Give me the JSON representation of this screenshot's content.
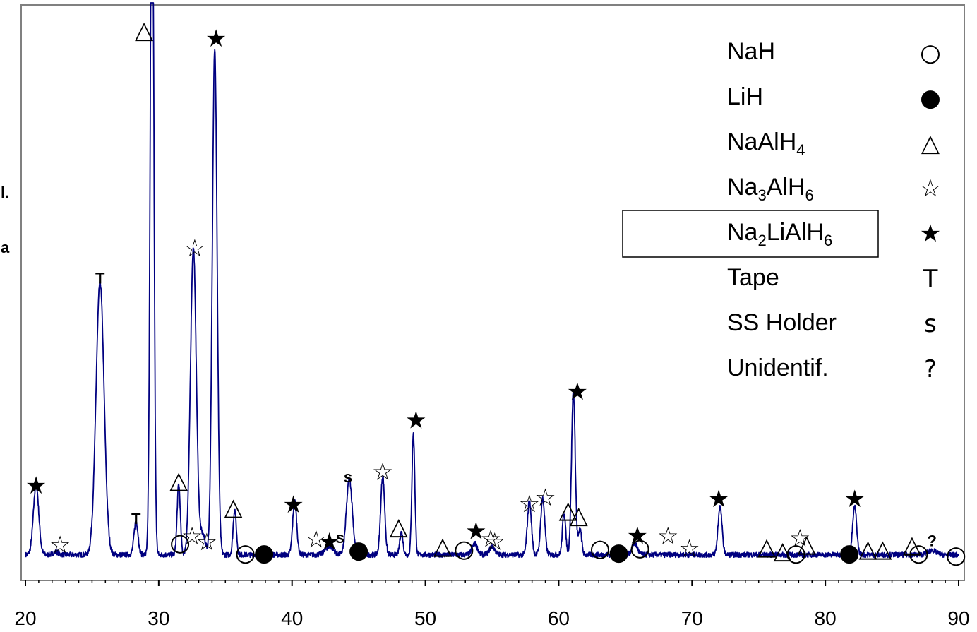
{
  "left_cut_text": [
    "l.",
    "a"
  ],
  "chart_data": {
    "type": "line",
    "title": "",
    "xlabel": "",
    "ylabel": "",
    "xlim": [
      20,
      90
    ],
    "ylim": [
      0,
      100
    ],
    "x_ticks": [
      20,
      30,
      40,
      50,
      60,
      70,
      80,
      90
    ],
    "x_tick_labels": [
      "20",
      "30",
      "40",
      "50",
      "60",
      "70",
      "80",
      "90"
    ],
    "grid": false,
    "line_color": "#000080",
    "series": [
      {
        "baseline": 2.3,
        "noise": 0.45,
        "peaks": [
          {
            "x": 20.8,
            "height": 12.5,
            "width": 0.2
          },
          {
            "x": 22.3,
            "height": 0.5,
            "width": 0.2
          },
          {
            "x": 25.6,
            "height": 48.5,
            "width": 0.3
          },
          {
            "x": 28.3,
            "height": 6.0,
            "width": 0.15
          },
          {
            "x": 29.5,
            "height": 135.0,
            "width": 0.13
          },
          {
            "x": 31.5,
            "height": 12.5,
            "width": 0.12
          },
          {
            "x": 32.6,
            "height": 54.5,
            "width": 0.22
          },
          {
            "x": 33.3,
            "height": 3.5,
            "width": 0.2
          },
          {
            "x": 34.2,
            "height": 90.0,
            "width": 0.18
          },
          {
            "x": 35.7,
            "height": 8.0,
            "width": 0.12
          },
          {
            "x": 40.2,
            "height": 9.5,
            "width": 0.15
          },
          {
            "x": 42.8,
            "height": 1.5,
            "width": 0.3
          },
          {
            "x": 44.3,
            "height": 13.5,
            "width": 0.22
          },
          {
            "x": 46.8,
            "height": 14.0,
            "width": 0.15
          },
          {
            "x": 48.2,
            "height": 4.0,
            "width": 0.12
          },
          {
            "x": 49.1,
            "height": 21.5,
            "width": 0.11
          },
          {
            "x": 53.7,
            "height": 2.0,
            "width": 0.2
          },
          {
            "x": 55.0,
            "height": 1.5,
            "width": 0.2
          },
          {
            "x": 57.8,
            "height": 9.5,
            "width": 0.15
          },
          {
            "x": 58.8,
            "height": 10.0,
            "width": 0.15
          },
          {
            "x": 60.4,
            "height": 7.5,
            "width": 0.12
          },
          {
            "x": 61.1,
            "height": 29.0,
            "width": 0.14
          },
          {
            "x": 61.6,
            "height": 4.5,
            "width": 0.12
          },
          {
            "x": 65.7,
            "height": 2.0,
            "width": 0.2
          },
          {
            "x": 72.1,
            "height": 8.5,
            "width": 0.15
          },
          {
            "x": 82.2,
            "height": 8.5,
            "width": 0.15
          },
          {
            "x": 88.0,
            "height": 0.8,
            "width": 0.3
          }
        ]
      }
    ],
    "legend": [
      {
        "label": "NaH",
        "symbol": "○"
      },
      {
        "label": "LiH",
        "symbol": "●"
      },
      {
        "label": "NaAlH",
        "sub": "4",
        "symbol": "△"
      },
      {
        "label": "Na3AlH6",
        "parts": [
          [
            "Na",
            ""
          ],
          [
            "3",
            "sub"
          ],
          [
            "AlH",
            ""
          ],
          [
            "6",
            "sub"
          ]
        ],
        "symbol": "☆"
      },
      {
        "label": "Na2LiAlH6",
        "parts": [
          [
            "Na",
            ""
          ],
          [
            "2",
            "sub"
          ],
          [
            "LiAlH",
            ""
          ],
          [
            "6",
            "sub"
          ]
        ],
        "symbol": "★",
        "boxed": true
      },
      {
        "label": "Tape",
        "symbol": "T"
      },
      {
        "label": "SS Holder",
        "symbol": "s"
      },
      {
        "label": "Unidentif.",
        "symbol": "?"
      }
    ],
    "legend_position": "top-right",
    "annotations": [
      {
        "x": 20.8,
        "y": 14.8,
        "symbol": "★"
      },
      {
        "x": 22.6,
        "y": 4.0,
        "symbol": "☆"
      },
      {
        "x": 25.6,
        "y": 51.5,
        "symbol": "T"
      },
      {
        "x": 28.3,
        "y": 8.8,
        "symbol": "T"
      },
      {
        "x": 28.9,
        "y": 95.5,
        "symbol": "△"
      },
      {
        "x": 31.5,
        "y": 15.5,
        "symbol": "△"
      },
      {
        "x": 31.6,
        "y": 4.2,
        "symbol": "○"
      },
      {
        "x": 32.5,
        "y": 5.6,
        "symbol": "☆"
      },
      {
        "x": 32.7,
        "y": 56.7,
        "symbol": "☆"
      },
      {
        "x": 33.6,
        "y": 4.5,
        "symbol": "☆"
      },
      {
        "x": 34.3,
        "y": 94.2,
        "symbol": "★"
      },
      {
        "x": 35.6,
        "y": 10.7,
        "symbol": "△"
      },
      {
        "x": 36.5,
        "y": 2.4,
        "symbol": "○"
      },
      {
        "x": 37.9,
        "y": 2.4,
        "symbol": "●"
      },
      {
        "x": 40.1,
        "y": 11.4,
        "symbol": "★"
      },
      {
        "x": 41.8,
        "y": 5.0,
        "symbol": "☆"
      },
      {
        "x": 42.8,
        "y": 4.8,
        "symbol": "★"
      },
      {
        "x": 43.6,
        "y": 5.4,
        "symbol": "s"
      },
      {
        "x": 44.2,
        "y": 16.2,
        "symbol": "s"
      },
      {
        "x": 45.0,
        "y": 2.9,
        "symbol": "●"
      },
      {
        "x": 46.8,
        "y": 17.0,
        "symbol": "☆"
      },
      {
        "x": 48.0,
        "y": 7.3,
        "symbol": "△"
      },
      {
        "x": 49.3,
        "y": 26.4,
        "symbol": "★"
      },
      {
        "x": 51.3,
        "y": 3.8,
        "symbol": "△"
      },
      {
        "x": 52.9,
        "y": 3.1,
        "symbol": "○"
      },
      {
        "x": 53.8,
        "y": 6.7,
        "symbol": "★"
      },
      {
        "x": 54.9,
        "y": 5.1,
        "symbol": "☆"
      },
      {
        "x": 55.2,
        "y": 4.6,
        "symbol": "☆"
      },
      {
        "x": 57.8,
        "y": 11.3,
        "symbol": "☆"
      },
      {
        "x": 59.0,
        "y": 12.4,
        "symbol": "☆"
      },
      {
        "x": 60.7,
        "y": 10.2,
        "symbol": "△"
      },
      {
        "x": 61.4,
        "y": 31.5,
        "symbol": "★"
      },
      {
        "x": 61.5,
        "y": 9.3,
        "symbol": "△"
      },
      {
        "x": 63.1,
        "y": 3.2,
        "symbol": "○"
      },
      {
        "x": 64.5,
        "y": 2.5,
        "symbol": "●"
      },
      {
        "x": 65.9,
        "y": 5.9,
        "symbol": "★"
      },
      {
        "x": 66.1,
        "y": 3.3,
        "symbol": "○"
      },
      {
        "x": 68.2,
        "y": 5.6,
        "symbol": "☆"
      },
      {
        "x": 69.8,
        "y": 3.4,
        "symbol": "☆"
      },
      {
        "x": 72.0,
        "y": 12.4,
        "symbol": "★"
      },
      {
        "x": 75.6,
        "y": 3.7,
        "symbol": "△"
      },
      {
        "x": 76.8,
        "y": 3.0,
        "symbol": "△"
      },
      {
        "x": 77.8,
        "y": 2.4,
        "symbol": "○"
      },
      {
        "x": 78.1,
        "y": 5.2,
        "symbol": "☆"
      },
      {
        "x": 78.6,
        "y": 4.2,
        "symbol": "△"
      },
      {
        "x": 81.8,
        "y": 2.4,
        "symbol": "●"
      },
      {
        "x": 82.2,
        "y": 12.4,
        "symbol": "★"
      },
      {
        "x": 83.2,
        "y": 3.3,
        "symbol": "△"
      },
      {
        "x": 84.3,
        "y": 3.3,
        "symbol": "△"
      },
      {
        "x": 86.5,
        "y": 4.1,
        "symbol": "△"
      },
      {
        "x": 87.0,
        "y": 2.4,
        "symbol": "○"
      },
      {
        "x": 88.0,
        "y": 4.8,
        "symbol": "?"
      },
      {
        "x": 89.8,
        "y": 2.0,
        "symbol": "○"
      }
    ]
  }
}
